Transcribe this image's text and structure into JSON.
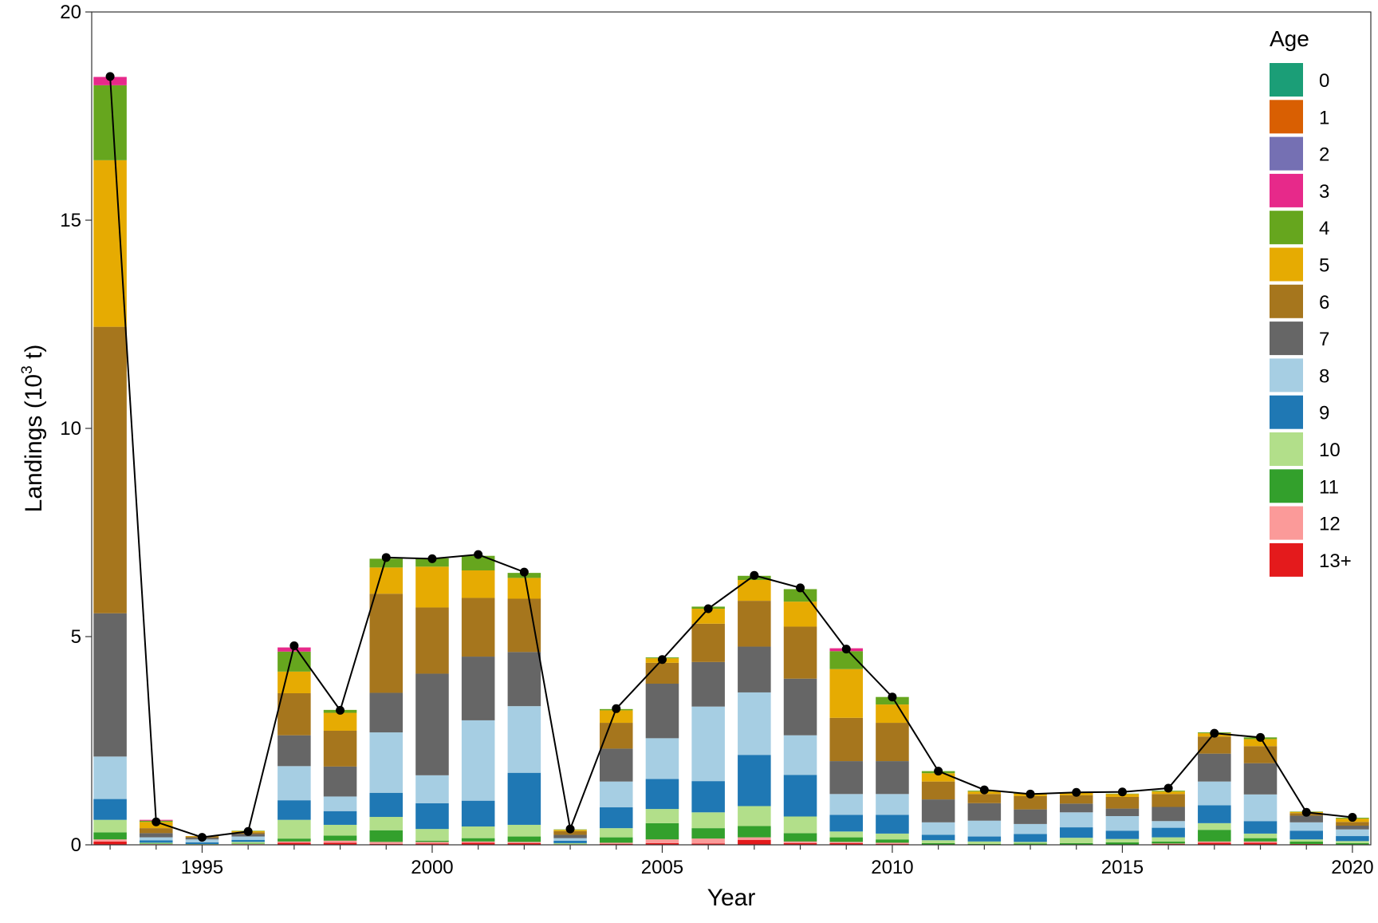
{
  "chart_data": {
    "type": "bar",
    "stacked": true,
    "xlabel": "Year",
    "ylabel_main": "Landings (10",
    "ylabel_sup": "3",
    "ylabel_tail": " t)",
    "ylim": [
      0,
      20
    ],
    "yticks": [
      0,
      5,
      10,
      15,
      20
    ],
    "xlim": [
      1992.6,
      2020.4
    ],
    "xticks": [
      1995,
      2000,
      2005,
      2010,
      2015,
      2020
    ],
    "years": [
      1993,
      1994,
      1995,
      1996,
      1997,
      1998,
      1999,
      2000,
      2001,
      2002,
      2003,
      2004,
      2005,
      2006,
      2007,
      2008,
      2009,
      2010,
      2011,
      2012,
      2013,
      2014,
      2015,
      2016,
      2017,
      2018,
      2019,
      2020
    ],
    "legend_title": "Age",
    "legend_position": "top-right",
    "grid": false,
    "series": [
      {
        "name": "13+",
        "color": "#E41A1C",
        "values": [
          0.08,
          0.01,
          0,
          0.01,
          0.05,
          0.05,
          0.02,
          0.03,
          0.05,
          0.04,
          0,
          0.02,
          0.04,
          0.03,
          0.12,
          0.04,
          0.04,
          0.02,
          0,
          0,
          0,
          0,
          0,
          0.02,
          0.05,
          0.05,
          0.02,
          0
        ]
      },
      {
        "name": "12",
        "color": "#FB9A99",
        "values": [
          0.05,
          0.01,
          0,
          0.01,
          0.03,
          0.05,
          0.05,
          0.04,
          0.03,
          0.03,
          0,
          0.03,
          0.09,
          0.12,
          0.06,
          0.04,
          0.03,
          0.03,
          0,
          0,
          0,
          0,
          0,
          0.01,
          0.03,
          0.03,
          0,
          0
        ]
      },
      {
        "name": "11",
        "color": "#33A02C",
        "values": [
          0.17,
          0.01,
          0,
          0.01,
          0.07,
          0.12,
          0.28,
          0.03,
          0.08,
          0.13,
          0.01,
          0.13,
          0.39,
          0.25,
          0.27,
          0.2,
          0.11,
          0.08,
          0.04,
          0.02,
          0.03,
          0.04,
          0.06,
          0.05,
          0.28,
          0.08,
          0.06,
          0.04
        ]
      },
      {
        "name": "10",
        "color": "#B2DF8A",
        "values": [
          0.3,
          0.02,
          0.02,
          0.04,
          0.45,
          0.26,
          0.32,
          0.28,
          0.28,
          0.28,
          0.03,
          0.22,
          0.34,
          0.38,
          0.48,
          0.4,
          0.14,
          0.14,
          0.07,
          0.06,
          0.04,
          0.13,
          0.08,
          0.1,
          0.16,
          0.11,
          0.05,
          0.05
        ]
      },
      {
        "name": "9",
        "color": "#1F78B4",
        "values": [
          0.5,
          0.06,
          0.04,
          0.05,
          0.47,
          0.33,
          0.58,
          0.62,
          0.62,
          1.25,
          0.06,
          0.5,
          0.72,
          0.75,
          1.23,
          1.0,
          0.4,
          0.45,
          0.13,
          0.12,
          0.19,
          0.25,
          0.2,
          0.23,
          0.43,
          0.3,
          0.21,
          0.12
        ]
      },
      {
        "name": "8",
        "color": "#A6CEE3",
        "values": [
          1.02,
          0.07,
          0.07,
          0.08,
          0.82,
          0.35,
          1.45,
          0.67,
          1.93,
          1.6,
          0.06,
          0.62,
          0.98,
          1.79,
          1.5,
          0.95,
          0.5,
          0.5,
          0.3,
          0.38,
          0.24,
          0.36,
          0.35,
          0.16,
          0.57,
          0.64,
          0.2,
          0.16
        ]
      },
      {
        "name": "7",
        "color": "#666666",
        "values": [
          3.44,
          0.1,
          0.04,
          0.06,
          0.74,
          0.72,
          0.95,
          2.44,
          1.53,
          1.3,
          0.08,
          0.79,
          1.31,
          1.07,
          1.1,
          1.36,
          0.79,
          0.79,
          0.55,
          0.42,
          0.35,
          0.21,
          0.18,
          0.34,
          0.67,
          0.75,
          0.16,
          0.09
        ]
      },
      {
        "name": "6",
        "color": "#A6761D",
        "values": [
          6.88,
          0.12,
          0.03,
          0.04,
          1.01,
          0.86,
          2.38,
          1.59,
          1.41,
          1.28,
          0.09,
          0.62,
          0.5,
          0.92,
          1.1,
          1.25,
          1.04,
          0.92,
          0.43,
          0.22,
          0.32,
          0.2,
          0.28,
          0.31,
          0.41,
          0.41,
          0.06,
          0.09
        ]
      },
      {
        "name": "5",
        "color": "#E6AB02",
        "values": [
          4.0,
          0.15,
          0.01,
          0.03,
          0.52,
          0.43,
          0.63,
          0.98,
          0.66,
          0.5,
          0.03,
          0.3,
          0.11,
          0.36,
          0.5,
          0.6,
          1.17,
          0.44,
          0.2,
          0.06,
          0.06,
          0.06,
          0.07,
          0.06,
          0.08,
          0.17,
          0.03,
          0.08
        ]
      },
      {
        "name": "4",
        "color": "#66A61E",
        "values": [
          1.8,
          0.03,
          0,
          0.01,
          0.48,
          0.07,
          0.21,
          0.2,
          0.35,
          0.12,
          0.01,
          0.03,
          0.02,
          0.05,
          0.1,
          0.3,
          0.43,
          0.18,
          0.05,
          0.02,
          0.01,
          0.01,
          0.01,
          0.02,
          0.02,
          0.04,
          0.01,
          0.02
        ]
      },
      {
        "name": "3",
        "color": "#E7298A",
        "values": [
          0.2,
          0.02,
          0,
          0,
          0.1,
          0,
          0,
          0,
          0,
          0,
          0,
          0,
          0,
          0,
          0,
          0,
          0.07,
          0,
          0,
          0,
          0,
          0,
          0,
          0,
          0,
          0,
          0,
          0
        ]
      },
      {
        "name": "2",
        "color": "#7570B3",
        "values": [
          0,
          0,
          0,
          0,
          0,
          0,
          0,
          0,
          0,
          0,
          0,
          0,
          0,
          0,
          0,
          0,
          0,
          0,
          0,
          0,
          0,
          0,
          0,
          0,
          0,
          0,
          0,
          0
        ]
      },
      {
        "name": "1",
        "color": "#D95F02",
        "values": [
          0,
          0,
          0,
          0,
          0,
          0,
          0,
          0,
          0,
          0,
          0,
          0,
          0,
          0,
          0,
          0,
          0,
          0,
          0,
          0,
          0,
          0,
          0,
          0,
          0,
          0,
          0,
          0
        ]
      },
      {
        "name": "0",
        "color": "#1B9E77",
        "values": [
          0,
          0,
          0,
          0,
          0,
          0,
          0,
          0,
          0,
          0,
          0,
          0,
          0,
          0,
          0,
          0,
          0,
          0,
          0,
          0,
          0,
          0,
          0,
          0,
          0,
          0,
          0,
          0
        ]
      }
    ],
    "line": {
      "color": "#000000",
      "values": [
        18.45,
        0.55,
        0.18,
        0.32,
        4.78,
        3.23,
        6.9,
        6.87,
        6.97,
        6.55,
        0.38,
        3.27,
        4.45,
        5.67,
        6.47,
        6.17,
        4.7,
        3.55,
        1.77,
        1.32,
        1.22,
        1.26,
        1.27,
        1.36,
        2.68,
        2.58,
        0.78,
        0.66
      ]
    }
  }
}
